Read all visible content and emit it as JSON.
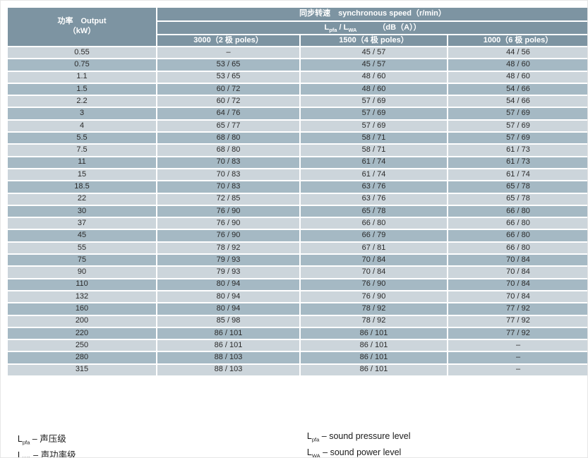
{
  "colors": {
    "header_bg": "#7D94A2",
    "row_light": "#CCD5DB",
    "row_dark": "#A5B9C4",
    "text_dark": "#2B2B2B",
    "header_text": "#FFFFFF"
  },
  "table": {
    "output_header": {
      "line1": "功率　Output",
      "line2": "（kW）"
    },
    "speed_header": "同步转速　synchronous speed（r/min）",
    "level_header": {
      "sym1": "L",
      "sub1": "pfa",
      "sep": " / ",
      "sym2": "L",
      "sub2": "WA",
      "unit": "（dB（A））"
    },
    "pole_headers": [
      "3000（2 极 poles）",
      "1500（4 极 poles）",
      "1000（6 极 poles）"
    ],
    "rows": [
      {
        "output": "0.55",
        "p2": "–",
        "p4": "45 / 57",
        "p6": "44 / 56"
      },
      {
        "output": "0.75",
        "p2": "53 / 65",
        "p4": "45 / 57",
        "p6": "48 / 60"
      },
      {
        "output": "1.1",
        "p2": "53 / 65",
        "p4": "48 / 60",
        "p6": "48 / 60"
      },
      {
        "output": "1.5",
        "p2": "60 / 72",
        "p4": "48 / 60",
        "p6": "54 / 66"
      },
      {
        "output": "2.2",
        "p2": "60 / 72",
        "p4": "57 / 69",
        "p6": "54 / 66"
      },
      {
        "output": "3",
        "p2": "64 / 76",
        "p4": "57 / 69",
        "p6": "57 / 69"
      },
      {
        "output": "4",
        "p2": "65 / 77",
        "p4": "57 / 69",
        "p6": "57 / 69"
      },
      {
        "output": "5.5",
        "p2": "68 / 80",
        "p4": "58 / 71",
        "p6": "57 / 69"
      },
      {
        "output": "7.5",
        "p2": "68 / 80",
        "p4": "58 / 71",
        "p6": "61 / 73"
      },
      {
        "output": "11",
        "p2": "70 / 83",
        "p4": "61 / 74",
        "p6": "61 / 73"
      },
      {
        "output": "15",
        "p2": "70 / 83",
        "p4": "61 / 74",
        "p6": "61 / 74"
      },
      {
        "output": "18.5",
        "p2": "70 / 83",
        "p4": "63 / 76",
        "p6": "65 / 78"
      },
      {
        "output": "22",
        "p2": "72 / 85",
        "p4": "63 / 76",
        "p6": "65 / 78"
      },
      {
        "output": "30",
        "p2": "76 / 90",
        "p4": "65 / 78",
        "p6": "66 / 80"
      },
      {
        "output": "37",
        "p2": "76 / 90",
        "p4": "66 / 80",
        "p6": "66 / 80"
      },
      {
        "output": "45",
        "p2": "76 / 90",
        "p4": "66 / 79",
        "p6": "66 / 80"
      },
      {
        "output": "55",
        "p2": "78 / 92",
        "p4": "67 / 81",
        "p6": "66 / 80"
      },
      {
        "output": "75",
        "p2": "79 / 93",
        "p4": "70 / 84",
        "p6": "70 / 84"
      },
      {
        "output": "90",
        "p2": "79 / 93",
        "p4": "70 / 84",
        "p6": "70 / 84"
      },
      {
        "output": "110",
        "p2": "80 / 94",
        "p4": "76 / 90",
        "p6": "70 / 84"
      },
      {
        "output": "132",
        "p2": "80 / 94",
        "p4": "76 / 90",
        "p6": "70 / 84"
      },
      {
        "output": "160",
        "p2": "80 / 94",
        "p4": "78 / 92",
        "p6": "77 / 92"
      },
      {
        "output": "200",
        "p2": "85 / 98",
        "p4": "78 / 92",
        "p6": "77 / 92"
      },
      {
        "output": "220",
        "p2": "86 / 101",
        "p4": "86 / 101",
        "p6": "77 / 92"
      },
      {
        "output": "250",
        "p2": "86 / 101",
        "p4": "86 / 101",
        "p6": "–"
      },
      {
        "output": "280",
        "p2": "88 / 103",
        "p4": "86 / 101",
        "p6": "–"
      },
      {
        "output": "315",
        "p2": "88 / 103",
        "p4": "86 / 101",
        "p6": "–"
      }
    ]
  },
  "notes": {
    "cn": [
      {
        "sym": "L",
        "sub": "pfa",
        "text": " – 声压级"
      },
      {
        "sym": "L",
        "sub": "WA",
        "text": " – 声功率级"
      }
    ],
    "en": [
      {
        "sym": "L",
        "sub": "pfa",
        "text": " – sound pressure level"
      },
      {
        "sym": "L",
        "sub": "WA",
        "text": " – sound power level"
      }
    ]
  }
}
